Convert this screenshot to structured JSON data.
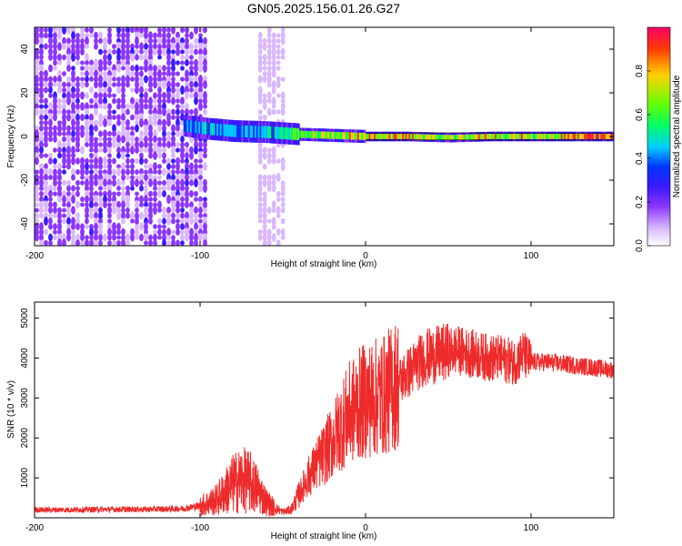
{
  "title": "GN05.2025.156.01.26.G27",
  "colors": {
    "snr_line": "#ee2b2b",
    "frame": "#000000",
    "colormap": [
      "#ffffff",
      "#d9b8ff",
      "#8b35ff",
      "#3a1aff",
      "#0033ff",
      "#00ccff",
      "#00ff66",
      "#66ff00",
      "#ffd200",
      "#ff3b00",
      "#ff0066"
    ]
  },
  "chart_data": [
    {
      "type": "heatmap",
      "xlabel": "Height of straight line (km)",
      "ylabel": "Frequency (Hz)",
      "xlim": [
        -200,
        150
      ],
      "ylim": [
        -50,
        50
      ],
      "xticks": [
        -200,
        -100,
        0,
        100
      ],
      "yticks": [
        40,
        20,
        0,
        -20,
        -40
      ],
      "colorbar": {
        "label": "Normalized spectral amplitude",
        "range": [
          0,
          1
        ],
        "ticks": [
          "0.0",
          "0.2",
          "0.4",
          "0.6",
          "0.8"
        ]
      },
      "signal_band": [
        {
          "x": -110,
          "freq": 5,
          "amplitude": 0.45
        },
        {
          "x": -95,
          "freq": 3.5,
          "amplitude": 0.55
        },
        {
          "x": -80,
          "freq": 2.5,
          "amplitude": 0.5
        },
        {
          "x": -60,
          "freq": 2,
          "amplitude": 0.55
        },
        {
          "x": -40,
          "freq": 1,
          "amplitude": 0.7
        },
        {
          "x": -20,
          "freq": 0.5,
          "amplitude": 0.8
        },
        {
          "x": 0,
          "freq": 0,
          "amplitude": 0.85
        },
        {
          "x": 25,
          "freq": 0,
          "amplitude": 0.9
        },
        {
          "x": 50,
          "freq": -0.5,
          "amplitude": 0.75
        },
        {
          "x": 75,
          "freq": 0,
          "amplitude": 0.85
        },
        {
          "x": 100,
          "freq": 0,
          "amplitude": 0.8
        },
        {
          "x": 125,
          "freq": 0,
          "amplitude": 0.9
        },
        {
          "x": 150,
          "freq": 0,
          "amplitude": 0.95
        }
      ],
      "noise_regions": [
        {
          "x_range": [
            -200,
            -97
          ],
          "freq_range": [
            -50,
            50
          ],
          "amplitude": 0.2
        },
        {
          "x_range": [
            -65,
            -50
          ],
          "freq_range": [
            -50,
            50
          ],
          "amplitude": 0.1
        }
      ]
    },
    {
      "type": "line",
      "xlabel": "Height of straight line (km)",
      "ylabel": "SNR (10 * v/v)",
      "xlim": [
        -200,
        150
      ],
      "ylim": [
        0,
        5400
      ],
      "xticks": [
        -200,
        -100,
        0,
        100
      ],
      "yticks": [
        1000,
        2000,
        3000,
        4000,
        5000
      ],
      "series": [
        {
          "x": [
            -200,
            -180,
            -160,
            -140,
            -120,
            -110,
            -100,
            -90,
            -85,
            -80,
            -75,
            -70,
            -65,
            -60,
            -55,
            -50,
            -45,
            -40,
            -35,
            -30,
            -25,
            -20,
            -15,
            -10,
            -5,
            0,
            5,
            10,
            15,
            20,
            25,
            30,
            35,
            40,
            45,
            50,
            55,
            60,
            65,
            70,
            75,
            80,
            85,
            90,
            95,
            100,
            110,
            120,
            130,
            140,
            150
          ],
          "y": [
            200,
            200,
            210,
            210,
            220,
            230,
            300,
            450,
            650,
            850,
            950,
            900,
            700,
            400,
            250,
            150,
            200,
            600,
            1000,
            1300,
            1600,
            1900,
            2300,
            2600,
            2800,
            2950,
            3000,
            3050,
            3200,
            3400,
            3600,
            3800,
            4000,
            4050,
            4100,
            4150,
            4200,
            4150,
            4100,
            4050,
            4000,
            4000,
            3950,
            3900,
            4100,
            3900,
            3900,
            3850,
            3800,
            3750,
            3700
          ]
        }
      ]
    }
  ]
}
